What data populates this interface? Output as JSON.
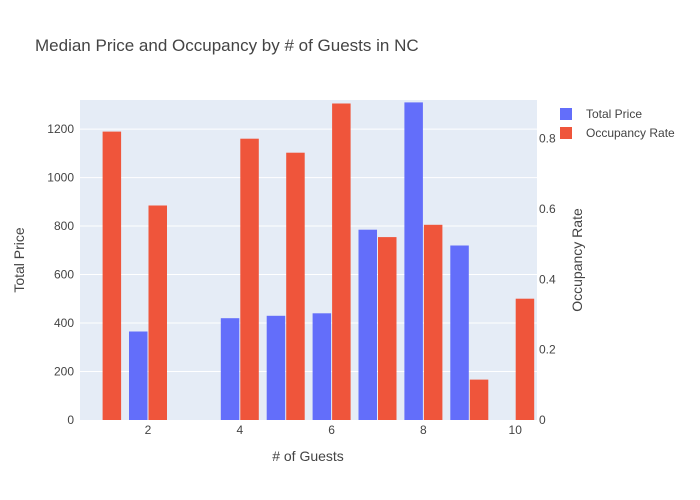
{
  "chart_data": {
    "type": "bar",
    "title": "Median Price and Occupancy by # of Guests in NC",
    "xlabel": "# of Guests",
    "ylabel": "Total Price",
    "y2label": "Occupancy Rate",
    "x": [
      1,
      2,
      3,
      4,
      5,
      6,
      7,
      8,
      9,
      10
    ],
    "xticks": [
      2,
      4,
      6,
      8,
      10
    ],
    "ylim": [
      0,
      1320
    ],
    "yticks": [
      0,
      200,
      400,
      600,
      800,
      1000,
      1200
    ],
    "y2lim": [
      0,
      0.91
    ],
    "y2ticks": [
      0,
      0.2,
      0.4,
      0.6,
      0.8
    ],
    "grid": true,
    "legend_position": "top-right",
    "series": [
      {
        "name": "Total Price",
        "axis": "y",
        "color": "#636efa",
        "values": [
          null,
          365,
          null,
          420,
          430,
          440,
          785,
          1310,
          720,
          null
        ]
      },
      {
        "name": "Occupancy Rate",
        "axis": "y2",
        "color": "#ef553b",
        "values": [
          0.82,
          0.61,
          null,
          0.8,
          0.76,
          0.9,
          0.52,
          0.555,
          0.115,
          0.345
        ]
      }
    ]
  }
}
